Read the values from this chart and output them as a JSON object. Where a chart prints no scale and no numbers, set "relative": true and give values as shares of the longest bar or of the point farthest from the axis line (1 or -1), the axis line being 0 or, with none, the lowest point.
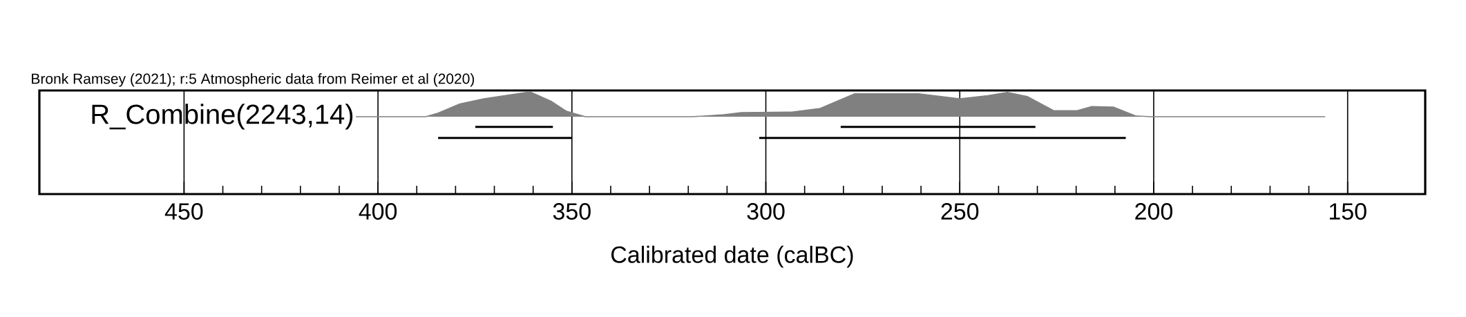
{
  "chart_data": {
    "type": "area",
    "relative": true,
    "xlabel": "Calibrated date (calBC)",
    "annotations": [
      "Bronk Ramsey (2021); r:5 Atmospheric data from Reimer et al (2020)"
    ],
    "xlim": [
      487.3,
      130
    ],
    "grid": "x",
    "xticks": [
      450,
      400,
      350,
      300,
      250,
      200,
      150
    ],
    "series": [
      {
        "name": "R_Combine(2243,14)",
        "color": "#808080",
        "x": [
          405.7,
          387.7,
          384.5,
          378.9,
          372.7,
          366.5,
          360.8,
          355.2,
          351.4,
          349,
          346.5,
          319.1,
          311.4,
          306.4,
          293.6,
          286,
          277.1,
          260.6,
          250,
          242.8,
          237.7,
          232.6,
          225.7,
          219.9,
          216.1,
          210.4,
          204.7,
          200.9,
          155.8
        ],
        "values": [
          0.46,
          0.46,
          0.54,
          0.74,
          0.85,
          0.93,
          1,
          0.79,
          0.58,
          0.52,
          0.46,
          0.46,
          0.5,
          0.55,
          0.56,
          0.64,
          0.96,
          0.96,
          0.85,
          0.92,
          0.99,
          0.9,
          0.59,
          0.59,
          0.68,
          0.67,
          0.48,
          0.46,
          0.46
        ]
      },
      {
        "type": "line",
        "color": "#000000",
        "x": [
          374.9,
          354.9,
          300,
          280.7,
          230.5
        ],
        "values": [
          0.24,
          0.24,
          null,
          0.24,
          0.24
        ]
      },
      {
        "type": "line",
        "color": "#000000",
        "x": [
          384.5,
          350,
          320,
          301.7,
          207.2
        ],
        "values": [
          0,
          0,
          null,
          0,
          0
        ]
      }
    ]
  }
}
